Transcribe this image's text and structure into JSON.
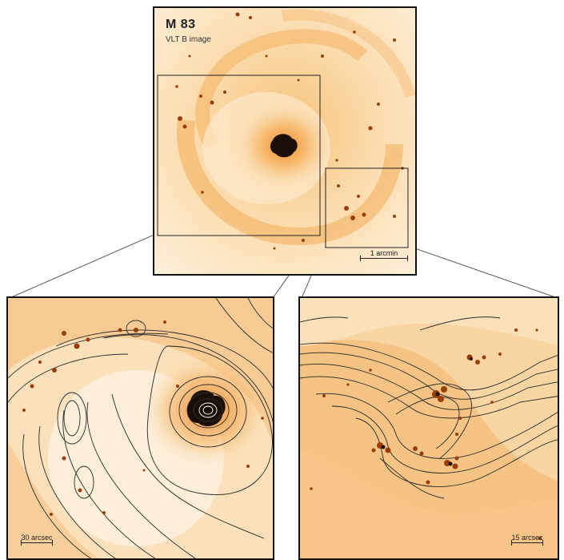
{
  "main": {
    "title": "M 83",
    "subtitle": "VLT B image",
    "scale_label": "1 arcmin"
  },
  "left_zoom": {
    "scale_label": "30 arcsec"
  },
  "right_zoom": {
    "scale_label": "15 arcsec"
  },
  "colors": {
    "background_light": "#fdf1df",
    "emission_mid": "#f6b964",
    "emission_strong": "#ea7d1c",
    "core": "#1a0f08",
    "contour": "#2a2a2a"
  }
}
